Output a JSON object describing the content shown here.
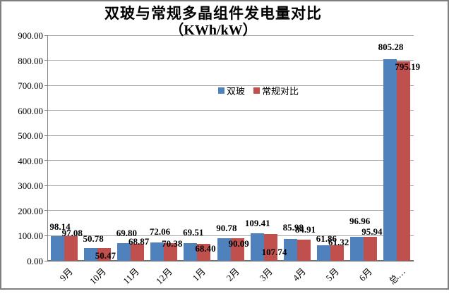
{
  "chart_data": {
    "type": "bar",
    "title": "双玻与常规多晶组件发电量对比",
    "subtitle": "（KWh/kW）",
    "categories": [
      "9月",
      "10月",
      "11月",
      "12月",
      "1月",
      "2月",
      "3月",
      "4月",
      "5月",
      "6月",
      "总…"
    ],
    "series": [
      {
        "name": "双玻",
        "color": "#4F81BD",
        "values": [
          98.14,
          50.78,
          69.8,
          72.06,
          69.51,
          90.78,
          109.41,
          85.98,
          61.86,
          96.96,
          805.28
        ],
        "value_labels": [
          "98.14",
          "50.78",
          "69.80",
          "72.06",
          "69.51",
          "90.78",
          "109.41",
          "85.98",
          "61.86",
          "96.96",
          "805.28"
        ]
      },
      {
        "name": "常规对比",
        "color": "#C0504D",
        "values": [
          97.08,
          50.47,
          68.87,
          70.38,
          68.4,
          90.09,
          107.74,
          84.91,
          61.32,
          95.94,
          795.19
        ],
        "value_labels": [
          "97.08",
          "50.47",
          "68.87",
          "70.38",
          "68.40",
          "90.09",
          "107.74",
          "84.91",
          "61.32",
          "95.94",
          "795.19"
        ]
      }
    ],
    "ylim": [
      0,
      900
    ],
    "ytick_step": 100,
    "y_tick_labels": [
      "900.00",
      "800.00",
      "700.00",
      "600.00",
      "500.00",
      "400.00",
      "300.00",
      "200.00",
      "100.00",
      "0.00"
    ],
    "grid": true,
    "legend_position": "inside-top-center"
  }
}
